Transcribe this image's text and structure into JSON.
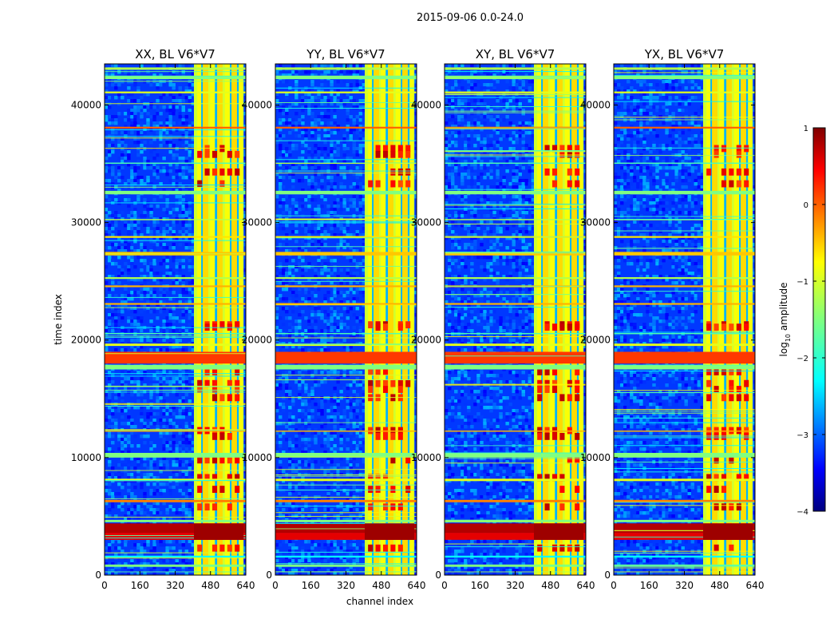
{
  "chart_data": {
    "type": "heatmap",
    "suptitle": "2015-09-06 0.0-24.0",
    "xlabel": "channel index",
    "ylabel": "time index",
    "xlim": [
      0,
      640
    ],
    "ylim": [
      0,
      43500
    ],
    "xticks": [
      "0",
      "160",
      "320",
      "480",
      "640"
    ],
    "yticks": [
      "0",
      "10000",
      "20000",
      "30000",
      "40000"
    ],
    "panels": [
      {
        "title": "XX, BL V6*V7"
      },
      {
        "title": "YY, BL V6*V7"
      },
      {
        "title": "XY, BL V6*V7"
      },
      {
        "title": "YX, BL V6*V7"
      }
    ],
    "colorbar": {
      "label": "log",
      "label_sub": "10",
      "label_rest": " amplitude",
      "range": [
        -4,
        1
      ],
      "ticks": [
        "1",
        "0",
        "−1",
        "−2",
        "−3",
        "−4"
      ]
    },
    "rfi_band_channels": [
      [
        405,
        630
      ]
    ],
    "flagged_time_bands": [
      [
        3000,
        4500
      ],
      [
        17500,
        19000
      ],
      [
        10000,
        10400
      ],
      [
        32400,
        32700
      ],
      [
        42200,
        42500
      ],
      [
        27200,
        27500
      ]
    ],
    "colormap": "jet"
  }
}
